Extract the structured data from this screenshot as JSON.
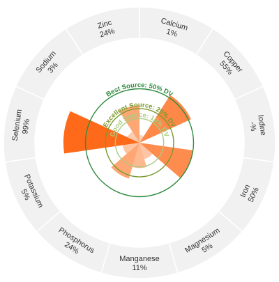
{
  "chart_data": {
    "type": "polar-area",
    "unit": "% DV",
    "categories": [
      {
        "name": "Calcium",
        "label": "1%",
        "value": 1
      },
      {
        "name": "Copper",
        "label": "55%",
        "value": 55
      },
      {
        "name": "Iodine",
        "label": "-%",
        "value": null
      },
      {
        "name": "Iron",
        "label": "50%",
        "value": 50
      },
      {
        "name": "Magnesium",
        "label": "5%",
        "value": 5
      },
      {
        "name": "Manganese",
        "label": "11%",
        "value": 11
      },
      {
        "name": "Phosphorus",
        "label": "24%",
        "value": 24
      },
      {
        "name": "Potassium",
        "label": "5%",
        "value": 5
      },
      {
        "name": "Selenium",
        "label": "99%",
        "value": 99
      },
      {
        "name": "Sodium",
        "label": "3%",
        "value": 3
      },
      {
        "name": "Zinc",
        "label": "24%",
        "value": 24
      }
    ],
    "reference_lines": [
      {
        "label": "Good Source: 10% DV",
        "value": 10,
        "color": "#a8cc80"
      },
      {
        "label": "Excellent Source: 20% DV",
        "value": 20,
        "color": "#7a9a2e"
      },
      {
        "label": "Best Source: 50% DV",
        "value": 50,
        "color": "#2e8b3e"
      }
    ],
    "colors": {
      "low": "#fde0cc",
      "high": "#ff6a1a",
      "outer_ring": "#f1f1f1",
      "ring_border": "#dddddd"
    }
  }
}
